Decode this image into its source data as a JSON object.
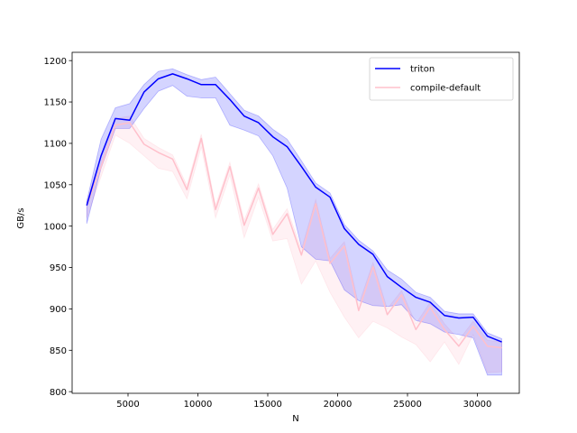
{
  "chart_data": {
    "type": "line",
    "title": "",
    "xlabel": "N",
    "ylabel": "GB/s",
    "xlim": [
      1000,
      33000
    ],
    "ylim": [
      798,
      1210
    ],
    "xticks": [
      5000,
      10000,
      15000,
      20000,
      25000,
      30000
    ],
    "yticks": [
      800,
      850,
      900,
      950,
      1000,
      1050,
      1100,
      1150,
      1200
    ],
    "grid": false,
    "legend_position": "top-right",
    "x": [
      2048,
      3072,
      4096,
      5120,
      6144,
      7168,
      8192,
      9216,
      10240,
      11264,
      12288,
      13312,
      14336,
      15360,
      16384,
      17408,
      18432,
      19456,
      20480,
      21504,
      22528,
      23552,
      24576,
      25600,
      26624,
      27648,
      28672,
      29696,
      30720,
      31744
    ],
    "series": [
      {
        "name": "triton",
        "color": "#0000ff",
        "band_color": "#0000ff",
        "values": [
          1025,
          1085,
          1130,
          1128,
          1162,
          1178,
          1184,
          1178,
          1171,
          1171,
          1153,
          1133,
          1125,
          1108,
          1096,
          1072,
          1047,
          1035,
          997,
          978,
          966,
          939,
          926,
          914,
          908,
          892,
          889,
          890,
          867,
          860
        ],
        "upper": [
          1030,
          1105,
          1143,
          1148,
          1171,
          1187,
          1190,
          1183,
          1177,
          1180,
          1160,
          1140,
          1133,
          1117,
          1105,
          1079,
          1052,
          1040,
          1002,
          983,
          970,
          947,
          936,
          920,
          914,
          897,
          894,
          894,
          871,
          864
        ],
        "lower": [
          1003,
          1070,
          1118,
          1118,
          1142,
          1163,
          1170,
          1157,
          1155,
          1155,
          1122,
          1116,
          1109,
          1085,
          1046,
          975,
          960,
          958,
          923,
          910,
          904,
          903,
          905,
          886,
          882,
          872,
          869,
          865,
          820,
          820
        ]
      },
      {
        "name": "compile-default",
        "color": "#ffc0cb",
        "band_color": "#ffc0cb",
        "values": [
          1025,
          1072,
          1122,
          1125,
          1099,
          1089,
          1081,
          1044,
          1106,
          1020,
          1072,
          1001,
          1046,
          990,
          1015,
          965,
          1027,
          955,
          976,
          898,
          951,
          893,
          917,
          875,
          902,
          875,
          855,
          879,
          855,
          853
        ],
        "upper": [
          1030,
          1085,
          1130,
          1133,
          1106,
          1095,
          1086,
          1049,
          1111,
          1025,
          1077,
          1007,
          1051,
          996,
          1021,
          972,
          1032,
          961,
          981,
          905,
          956,
          900,
          922,
          882,
          908,
          882,
          862,
          885,
          862,
          860
        ],
        "lower": [
          1010,
          1060,
          1110,
          1100,
          1085,
          1070,
          1066,
          1033,
          1096,
          1010,
          1062,
          986,
          1035,
          982,
          985,
          930,
          958,
          920,
          890,
          865,
          885,
          877,
          866,
          857,
          836,
          860,
          833,
          869,
          823,
          824
        ]
      }
    ]
  }
}
